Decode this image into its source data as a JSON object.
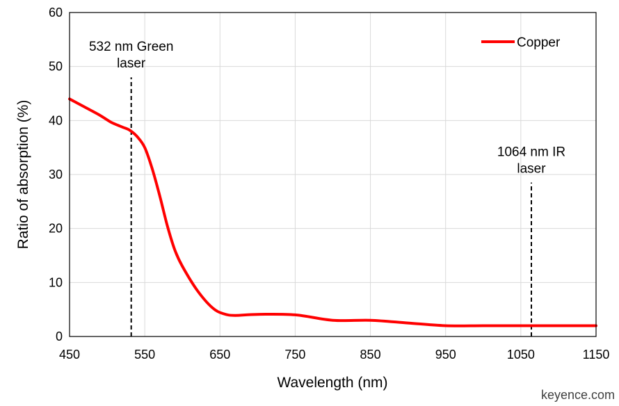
{
  "chart_data": {
    "type": "line",
    "xlabel": "Wavelength (nm)",
    "ylabel": "Ratio of absorption (%)",
    "xlim": [
      450,
      1150
    ],
    "ylim": [
      0,
      60
    ],
    "xticks": [
      450,
      550,
      650,
      750,
      850,
      950,
      1050,
      1150
    ],
    "yticks": [
      0,
      10,
      20,
      30,
      40,
      50,
      60
    ],
    "grid": true,
    "legend_position": "top-right",
    "series": [
      {
        "name": "Copper",
        "color": "#ff0000",
        "x": [
          450,
          470,
          490,
          505,
          520,
          530,
          540,
          550,
          560,
          570,
          580,
          590,
          600,
          620,
          640,
          655,
          670,
          700,
          750,
          800,
          850,
          900,
          950,
          1000,
          1050,
          1100,
          1150
        ],
        "y": [
          44,
          42.5,
          41,
          39.7,
          38.8,
          38.2,
          37,
          35,
          31,
          26,
          20.5,
          16,
          13,
          8.5,
          5.3,
          4.2,
          3.9,
          4.1,
          4.0,
          3.0,
          3.0,
          2.5,
          2.0,
          2.0,
          2.0,
          2.0,
          2.0
        ]
      }
    ],
    "annotations": [
      {
        "lines": [
          "532 nm Green",
          "laser"
        ],
        "x": 532,
        "line_from_y": 0,
        "line_to_y": 48,
        "style": "dashed"
      },
      {
        "lines": [
          "1064 nm IR",
          "laser"
        ],
        "x": 1064,
        "line_from_y": 0,
        "line_to_y": 28.5,
        "style": "dashed"
      }
    ]
  },
  "source_text": "keyence.com"
}
